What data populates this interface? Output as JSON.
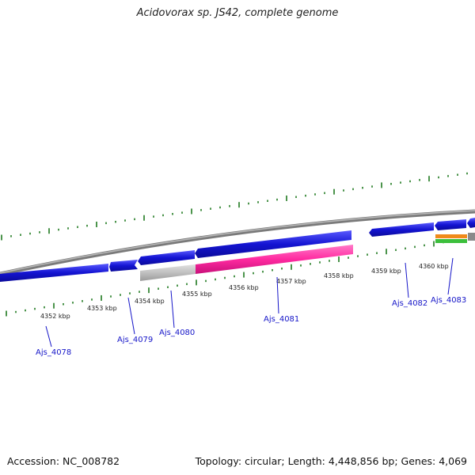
{
  "title": "Acidovorax sp. JS42, complete genome",
  "footer": {
    "accession": "Accession: NC_008782",
    "summary": "Topology: circular; Length: 4,448,856 bp; Genes: 4,069"
  },
  "ruler_labels": [
    "4352 kbp",
    "4353 kbp",
    "4354 kbp",
    "4355 kbp",
    "4356 kbp",
    "4357 kbp",
    "4358 kbp",
    "4359 kbp",
    "4360 kbp"
  ],
  "gene_labels": [
    "Ajs_4078",
    "Ajs_4079",
    "Ajs_4080",
    "Ajs_4081",
    "Ajs_4082",
    "Ajs_4083"
  ],
  "colors": {
    "backbone": "#8a8a8a",
    "gene": "#1414d2",
    "rna": "#ff2aa0",
    "region": "#c0c0c0",
    "ticks": "#1f7a1f",
    "label": "#1515c8",
    "orange": "#f08a1a",
    "green": "#3cbf3c"
  }
}
